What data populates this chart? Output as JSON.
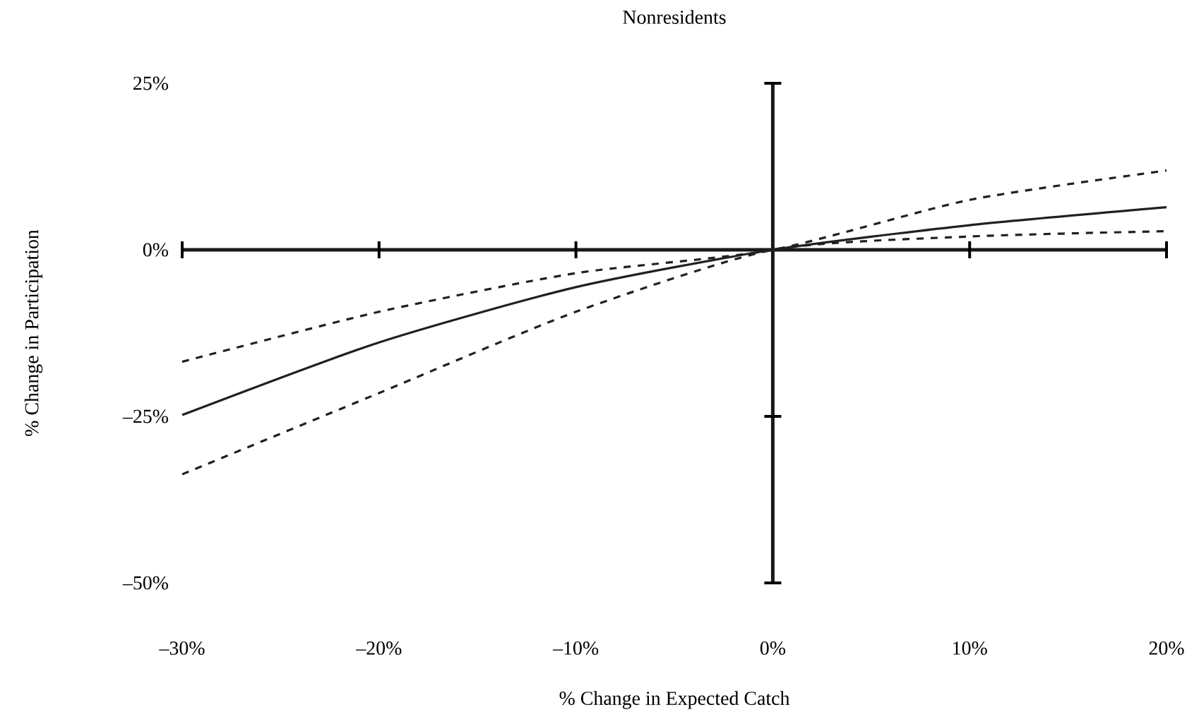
{
  "chart_data": {
    "type": "line",
    "title": "Nonresidents",
    "xlabel": "% Change in Expected Catch",
    "ylabel": "% Change in Participation",
    "x": [
      -30,
      -20,
      -10,
      0,
      10,
      20
    ],
    "series": [
      {
        "color": "#231f20",
        "line_style": "solid",
        "values": [
          -24.8,
          -13.9,
          -5.6,
          0,
          3.7,
          6.4
        ]
      },
      {
        "color": "#231f20",
        "line_style": "dashed",
        "values": [
          -16.8,
          -9.3,
          -3.5,
          0,
          7.5,
          11.9
        ]
      },
      {
        "color": "#231f20",
        "line_style": "dashed",
        "values": [
          -33.7,
          -21.5,
          -9.3,
          0,
          2.0,
          2.8
        ]
      }
    ],
    "xlim": [
      -30,
      20
    ],
    "ylim": [
      -50,
      25
    ],
    "xticks": [
      {
        "value": -30,
        "label": "–30%"
      },
      {
        "value": -20,
        "label": "–20%"
      },
      {
        "value": -10,
        "label": "–10%"
      },
      {
        "value": 0,
        "label": "0%"
      },
      {
        "value": 10,
        "label": "10%"
      },
      {
        "value": 20,
        "label": "20%"
      }
    ],
    "yticks": [
      {
        "value": -50,
        "label": "–50%"
      },
      {
        "value": -25,
        "label": "–25%"
      },
      {
        "value": 0,
        "label": "0%"
      },
      {
        "value": 25,
        "label": "25%"
      }
    ],
    "marker": "none"
  }
}
